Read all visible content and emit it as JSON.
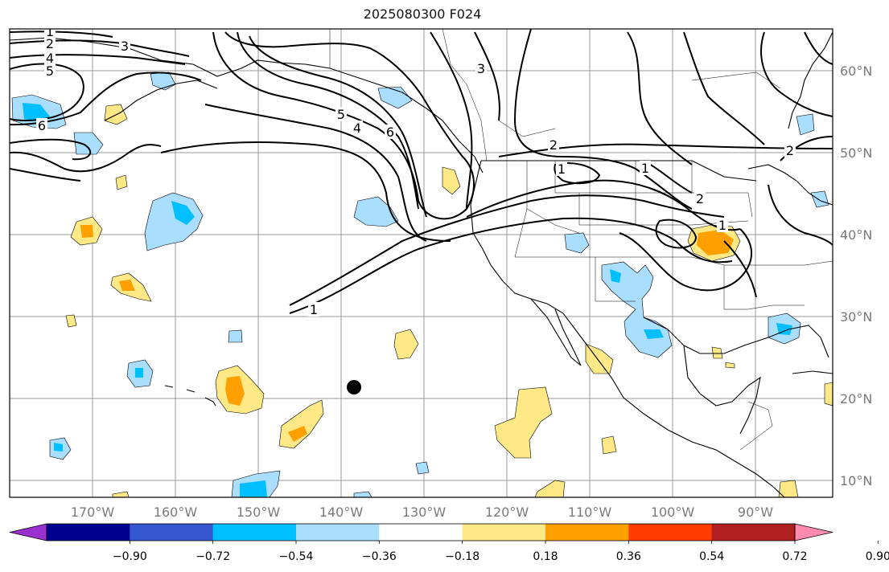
{
  "title": "2025080300 F024",
  "map": {
    "lon_ticks": [
      "170°W",
      "160°W",
      "150°W",
      "140°W",
      "130°W",
      "120°W",
      "110°W",
      "100°W",
      "90°W"
    ],
    "lat_ticks": [
      "60°N",
      "50°N",
      "40°N",
      "30°N",
      "20°N",
      "10°N"
    ],
    "grid": true,
    "contour_color": "#000000",
    "land_outline_color": "#000000",
    "marker": {
      "shape": "filled-circle",
      "color": "#000000"
    }
  },
  "colorbar": {
    "orientation": "horizontal",
    "extend": "both",
    "colors": [
      "#9b30d0",
      "#000090",
      "#3558d0",
      "#00bfff",
      "#aadeff",
      "#ffffff",
      "#ffe987",
      "#ffa000",
      "#ff3c00",
      "#b02020",
      "#ff8bb0"
    ],
    "tick_labels": [
      "−0.90",
      "−0.72",
      "−0.54",
      "−0.36",
      "−0.18",
      "0.18",
      "0.36",
      "0.54",
      "0.72",
      "0.90"
    ]
  },
  "contour_labels": [
    "1",
    "2",
    "3",
    "4",
    "5",
    "6",
    "5",
    "4",
    "6",
    "3",
    "2",
    "2",
    "2",
    "1",
    "1",
    "1",
    "1"
  ]
}
